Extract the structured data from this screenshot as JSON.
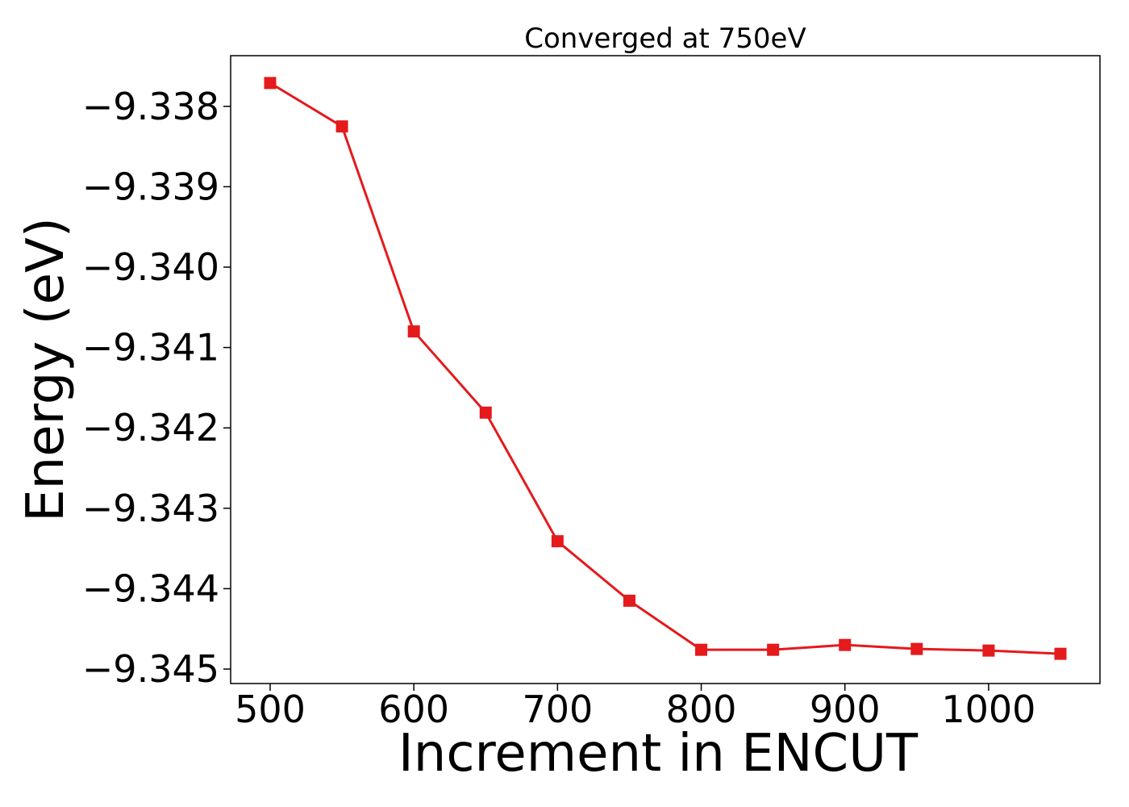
{
  "chart_data": {
    "type": "line",
    "title": "Converged at 750eV",
    "xlabel": "Increment in ENCUT",
    "ylabel": "Energy (eV)",
    "xlim": [
      472.5,
      1077.5
    ],
    "ylim": [
      -9.34518,
      -9.33737
    ],
    "x_ticks": [
      500,
      600,
      700,
      800,
      900,
      1000
    ],
    "y_ticks": [
      -9.338,
      -9.339,
      -9.34,
      -9.341,
      -9.342,
      -9.343,
      -9.344,
      -9.345
    ],
    "y_tick_labels": [
      "−9.338",
      "−9.339",
      "−9.340",
      "−9.341",
      "−9.342",
      "−9.343",
      "−9.344",
      "−9.345"
    ],
    "grid": false,
    "legend": "none",
    "series": [
      {
        "color": "#e41a1c",
        "marker": "square",
        "x": [
          500,
          550,
          600,
          650,
          700,
          750,
          800,
          850,
          900,
          950,
          1000,
          1050
        ],
        "y": [
          -9.33771,
          -9.33825,
          -9.3408,
          -9.34181,
          -9.34341,
          -9.34415,
          -9.34476,
          -9.34476,
          -9.3447,
          -9.34475,
          -9.34477,
          -9.34481
        ]
      }
    ]
  }
}
